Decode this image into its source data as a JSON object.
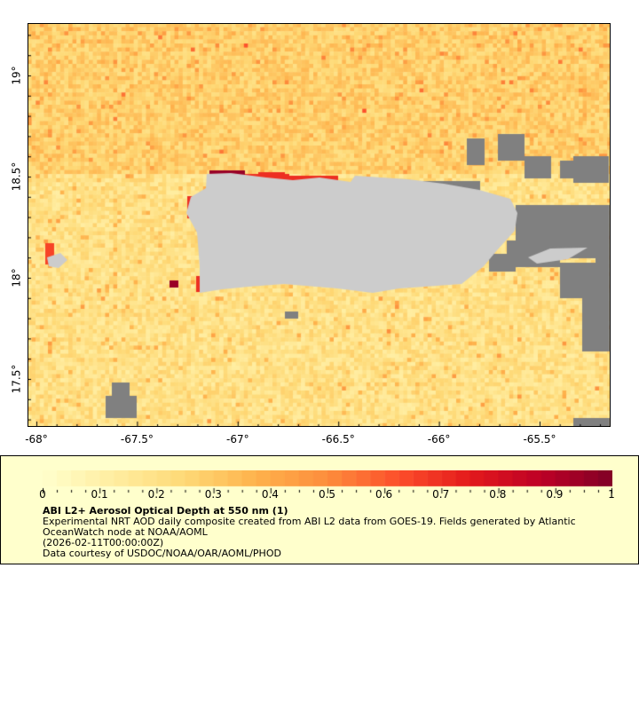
{
  "map": {
    "lon_range": [
      -68.05,
      -65.2
    ],
    "lat_range": [
      17.25,
      19.25
    ],
    "x_ticks": [
      {
        "value": -68,
        "label": "-68°"
      },
      {
        "value": -67.5,
        "label": "-67.5°"
      },
      {
        "value": -67,
        "label": "-67°"
      },
      {
        "value": -66.5,
        "label": "-66.5°"
      },
      {
        "value": -66,
        "label": "-66°"
      },
      {
        "value": -65.5,
        "label": "-65.5°"
      }
    ],
    "y_ticks": [
      {
        "value": 19,
        "label": "19°"
      },
      {
        "value": 18.5,
        "label": "18.5°"
      },
      {
        "value": 18,
        "label": "18°"
      },
      {
        "value": 17.5,
        "label": "17.5°"
      }
    ],
    "land_color": "#cccccc",
    "nodata_color": "#808080"
  },
  "colorbar": {
    "range": [
      0,
      1
    ],
    "steps": 40,
    "stops": [
      "#ffffcc",
      "#ffeda0",
      "#fed976",
      "#feb24c",
      "#fd8d3c",
      "#fc4e2a",
      "#e31a1c",
      "#bd0026",
      "#800026"
    ],
    "tick_labels": [
      "0",
      "0.1",
      "0.2",
      "0.3",
      "0.4",
      "0.5",
      "0.6",
      "0.7",
      "0.8",
      "0.9",
      "1"
    ]
  },
  "legend": {
    "title": "ABI L2+ Aerosol Optical Depth at 550 nm (1)",
    "line1": "Experimental NRT AOD daily composite created from ABI L2 data from GOES-19. Fields generated by Atlantic",
    "line2": "OceanWatch node at NOAA/AOML",
    "line3": "(2026-02-11T00:00:00Z)",
    "line4": "Data courtesy of USDOC/NOAA/OAR/AOML/PHOD"
  }
}
